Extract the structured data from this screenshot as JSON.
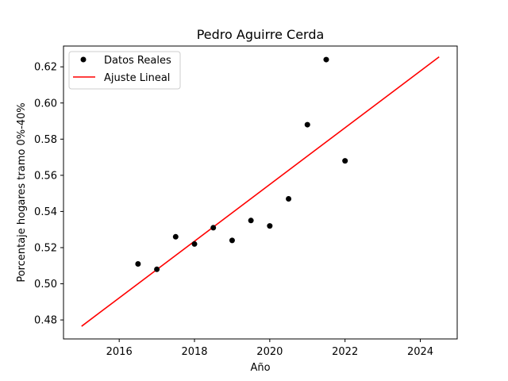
{
  "chart_data": {
    "type": "scatter",
    "title": "Pedro Aguirre Cerda",
    "xlabel": "Año",
    "ylabel": "Porcentaje hogares tramo 0%-40%",
    "xlim": [
      2014.52,
      2024.98
    ],
    "ylim": [
      0.4695,
      0.6315
    ],
    "xticks": [
      2016,
      2018,
      2020,
      2022,
      2024
    ],
    "yticks": [
      0.48,
      0.5,
      0.52,
      0.54,
      0.56,
      0.58,
      0.6,
      0.62
    ],
    "xtick_labels": [
      "2016",
      "2018",
      "2020",
      "2022",
      "2024"
    ],
    "ytick_labels": [
      "0.48",
      "0.50",
      "0.52",
      "0.54",
      "0.56",
      "0.58",
      "0.60",
      "0.62"
    ],
    "grid": false,
    "legend_position": "upper-left",
    "series": [
      {
        "name": "Datos Reales",
        "kind": "scatter",
        "color": "#000000",
        "x": [
          2016.5,
          2017.0,
          2017.5,
          2018.0,
          2018.5,
          2019.0,
          2019.5,
          2020.0,
          2020.5,
          2021.0,
          2021.5,
          2022.0
        ],
        "y": [
          0.511,
          0.508,
          0.526,
          0.522,
          0.531,
          0.524,
          0.535,
          0.532,
          0.547,
          0.588,
          0.624,
          0.568
        ]
      },
      {
        "name": "Ajuste Lineal",
        "kind": "line",
        "color": "#ff0000",
        "x": [
          2015.0,
          2024.5
        ],
        "y": [
          0.4765,
          0.6255
        ]
      }
    ]
  }
}
